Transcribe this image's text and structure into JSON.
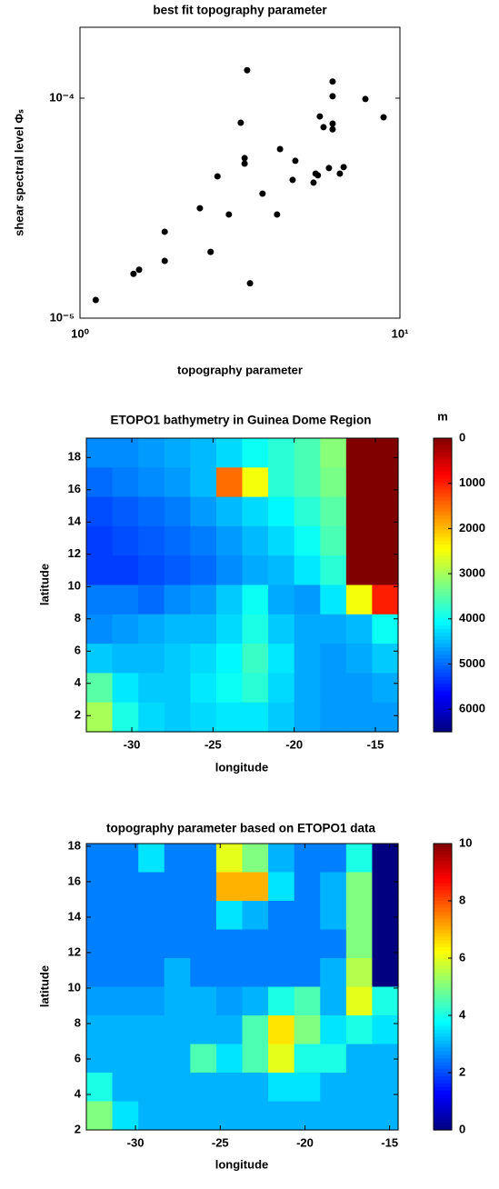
{
  "chart_data": [
    {
      "type": "scatter",
      "title": "best fit topography parameter",
      "xlabel": "topography parameter",
      "ylabel": "shear spectral level Φₛ",
      "xscale": "log",
      "yscale": "log",
      "color": "#000000",
      "xlim": [
        1,
        10
      ],
      "ylim": [
        1e-05,
        0.00021
      ],
      "xticks": [
        {
          "value": 1,
          "label": "10⁰"
        },
        {
          "value": 10,
          "label": "10¹"
        }
      ],
      "yticks": [
        {
          "value": 1e-05,
          "label": "10⁻⁵"
        },
        {
          "value": 0.0001,
          "label": "10⁻⁴"
        }
      ],
      "x": [
        1.12,
        1.47,
        1.53,
        1.84,
        1.84,
        2.37,
        2.56,
        2.69,
        2.92,
        3.18,
        3.27,
        3.27,
        3.33,
        3.4,
        3.72,
        4.13,
        4.22,
        4.62,
        4.71,
        5.37,
        5.45,
        5.54,
        5.62,
        5.77,
        6.0,
        6.16,
        6.16,
        6.16,
        6.16,
        6.49,
        6.67,
        7.8,
        8.89
      ],
      "y": [
        1.21e-05,
        1.59e-05,
        1.66e-05,
        1.82e-05,
        2.47e-05,
        3.16e-05,
        2e-05,
        4.41e-05,
        2.96e-05,
        7.73e-05,
        5.34e-05,
        5.04e-05,
        0.000134,
        1.44e-05,
        3.68e-05,
        2.96e-05,
        5.87e-05,
        4.25e-05,
        5.19e-05,
        4.13e-05,
        4.54e-05,
        4.46e-05,
        8.26e-05,
        7.38e-05,
        4.81e-05,
        0.000119,
        0.000102,
        7.66e-05,
        7.22e-05,
        4.54e-05,
        4.86e-05,
        9.91e-05,
        8.19e-05
      ]
    },
    {
      "type": "heatmap",
      "title": "ETOPO1 bathymetry in Guinea Dome Region",
      "xlabel": "longitude",
      "ylabel": "latitude",
      "colorbar_label": "m",
      "colormap": "jet_r",
      "colorbar_reversed": true,
      "clim": [
        0,
        6500
      ],
      "cticks": [
        0,
        1000,
        2000,
        3000,
        4000,
        5000,
        6000
      ],
      "xlim": [
        -32.8,
        -13.6
      ],
      "ylim": [
        1,
        19.2
      ],
      "xticks": [
        -30,
        -25,
        -20,
        -15
      ],
      "yticks": [
        2,
        4,
        6,
        8,
        10,
        12,
        14,
        16,
        18
      ],
      "z": [
        [
          4800,
          4800,
          4700,
          4600,
          4500,
          4300,
          4000,
          3800,
          3600,
          3200,
          0,
          0
        ],
        [
          5000,
          4900,
          4800,
          4700,
          4500,
          1500,
          2500,
          3800,
          3600,
          3300,
          0,
          0
        ],
        [
          5200,
          5100,
          5000,
          4900,
          4700,
          4500,
          4300,
          4100,
          3800,
          3500,
          0,
          0
        ],
        [
          5300,
          5200,
          5100,
          5000,
          4900,
          4700,
          4500,
          4300,
          4000,
          3600,
          0,
          0
        ],
        [
          5300,
          5300,
          5200,
          5100,
          5000,
          4800,
          4600,
          4500,
          4200,
          3800,
          0,
          0
        ],
        [
          4900,
          4900,
          5000,
          4800,
          4700,
          4400,
          4000,
          4600,
          4700,
          4200,
          2500,
          1000
        ],
        [
          4800,
          4700,
          4600,
          4500,
          4500,
          4300,
          3900,
          4400,
          4600,
          4600,
          4500,
          4000
        ],
        [
          4400,
          4500,
          4500,
          4400,
          4300,
          4100,
          3700,
          4200,
          4600,
          4700,
          4600,
          4400
        ],
        [
          3500,
          4200,
          4400,
          4400,
          4200,
          4000,
          3800,
          4300,
          4600,
          4700,
          4700,
          4600
        ],
        [
          3000,
          3900,
          4300,
          4400,
          4300,
          4200,
          4200,
          4400,
          4600,
          4700,
          4700,
          4700
        ]
      ]
    },
    {
      "type": "heatmap",
      "title": "topography parameter based on ETOPO1 data",
      "xlabel": "longitude",
      "ylabel": "latitude",
      "colormap": "jet",
      "colorbar_reversed": false,
      "clim": [
        0,
        10
      ],
      "cticks": [
        0,
        2,
        4,
        6,
        8,
        10
      ],
      "xlim": [
        -32.9,
        -14.5
      ],
      "ylim": [
        2,
        18.15
      ],
      "xticks": [
        -30,
        -25,
        -20,
        -15
      ],
      "yticks": [
        2,
        4,
        6,
        8,
        10,
        12,
        14,
        16,
        18
      ],
      "z": [
        [
          2.5,
          2.5,
          3.5,
          2.5,
          2.5,
          6,
          5,
          3,
          2.5,
          2.5,
          4,
          0
        ],
        [
          2.5,
          2.5,
          2.5,
          2.5,
          2.5,
          7,
          7,
          3.5,
          2.5,
          3,
          5,
          0
        ],
        [
          2.5,
          2.5,
          2.5,
          2.5,
          2.5,
          3.5,
          3,
          2.5,
          2.5,
          3,
          5,
          0
        ],
        [
          2.5,
          2.5,
          2.5,
          2.5,
          2.5,
          2.5,
          2.5,
          2.5,
          2.5,
          2.5,
          5,
          0
        ],
        [
          2.5,
          2.5,
          2.5,
          3,
          2.5,
          2.5,
          2.5,
          2.5,
          2.5,
          3,
          5.5,
          0
        ],
        [
          2.8,
          2.8,
          2.8,
          3,
          3,
          2.8,
          3,
          4,
          4.5,
          3,
          6,
          4
        ],
        [
          3,
          3,
          3,
          3,
          3,
          3,
          4.5,
          6.5,
          5,
          3.5,
          4,
          3.5
        ],
        [
          3,
          3,
          3,
          3,
          4.5,
          3.5,
          4.5,
          6,
          4,
          4,
          3,
          3
        ],
        [
          4,
          3,
          3,
          3,
          3,
          3,
          3,
          3.5,
          3.5,
          3,
          3,
          3
        ],
        [
          5,
          3.5,
          3,
          3,
          3,
          3,
          3,
          3,
          3,
          3,
          3,
          3
        ]
      ]
    }
  ]
}
